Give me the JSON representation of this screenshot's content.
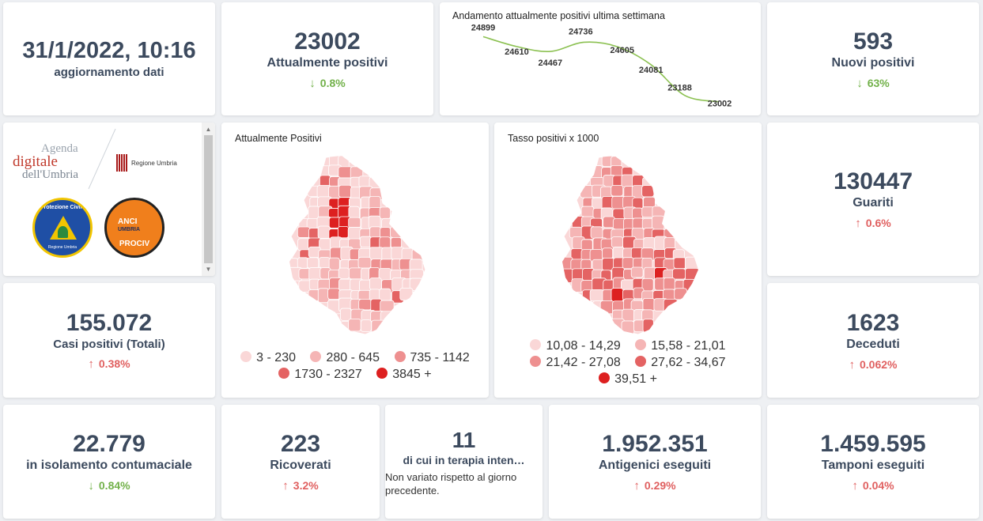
{
  "update": {
    "datetime": "31/1/2022, 10:16",
    "label": "aggiornamento dati"
  },
  "attualmente_positivi": {
    "value": "23002",
    "label": "Attualmente positivi",
    "arrow": "down",
    "change": "0.8%"
  },
  "trend_chart": {
    "title": "Andamento attualmente positivi ultima settimana",
    "chart_data": {
      "type": "line",
      "title": "Andamento attualmente positivi ultima settimana",
      "values": [
        24899,
        24610,
        24467,
        24736,
        24605,
        24081,
        23188,
        23002
      ],
      "data_labels": [
        "24899",
        "24610",
        "24467",
        "24736",
        "24605",
        "24081",
        "23188",
        "23002"
      ],
      "series_color": "#8cc152",
      "ylim": [
        22900,
        25000
      ],
      "grid": false
    }
  },
  "nuovi_positivi": {
    "value": "593",
    "label": "Nuovi positivi",
    "arrow": "down",
    "change": "63%"
  },
  "logos": {
    "agenda_line1": "Agenda",
    "agenda_line2": "digitale",
    "agenda_line3": "dell'Umbria",
    "regione": "Regione Umbria",
    "protezione_top": "Protezione Civile",
    "protezione_bottom": "Regione Umbria",
    "anci_line1": "ANCI",
    "anci_line2": "UMBRIA",
    "anci_line3": "PROCIV"
  },
  "map_positivi": {
    "title": "Attualmente Positivi",
    "legend": [
      {
        "label": "3 - 230",
        "color": "#fad7d7"
      },
      {
        "label": "280 - 645",
        "color": "#f5b5b5"
      },
      {
        "label": "735 - 1142",
        "color": "#ee9090"
      },
      {
        "label": "1730 - 2327",
        "color": "#e46363"
      },
      {
        "label": "3845 +",
        "color": "#dd2020"
      }
    ]
  },
  "map_tasso": {
    "title": "Tasso positivi x 1000",
    "legend": [
      {
        "label": "10,08 - 14,29",
        "color": "#fad7d7"
      },
      {
        "label": "15,58 - 21,01",
        "color": "#f5b5b5"
      },
      {
        "label": "21,42 - 27,08",
        "color": "#ee9090"
      },
      {
        "label": "27,62 - 34,67",
        "color": "#e46363"
      },
      {
        "label": "39,51 +",
        "color": "#dd2020"
      }
    ]
  },
  "guariti": {
    "value": "130447",
    "label": "Guariti",
    "arrow": "up",
    "change": "0.6%"
  },
  "casi_totali": {
    "value": "155.072",
    "label": "Casi positivi (Totali)",
    "arrow": "up",
    "change": "0.38%"
  },
  "deceduti": {
    "value": "1623",
    "label": "Deceduti",
    "arrow": "up",
    "change": "0.062%"
  },
  "isolamento": {
    "value": "22.779",
    "label": "in isolamento contumaciale",
    "arrow": "down",
    "change": "0.84%"
  },
  "ricoverati": {
    "value": "223",
    "label": "Ricoverati",
    "arrow": "up",
    "change": "3.2%"
  },
  "terapia": {
    "value": "11",
    "label": "di cui in terapia inten…",
    "note": "Non variato rispetto al giorno precedente."
  },
  "antigenici": {
    "value": "1.952.351",
    "label": "Antigenici eseguiti",
    "arrow": "up",
    "change": "0.29%"
  },
  "tamponi": {
    "value": "1.459.595",
    "label": "Tamponi eseguiti",
    "arrow": "up",
    "change": "0.04%"
  },
  "icons": {
    "up": "↑",
    "down": "↓",
    "arrow_names": {
      "up": "arrow-up-icon",
      "down": "arrow-down-icon"
    }
  },
  "colors": {
    "up": "#e06060",
    "down": "#72b14a",
    "line": "#8cc152",
    "text": "#3c4a5e"
  }
}
